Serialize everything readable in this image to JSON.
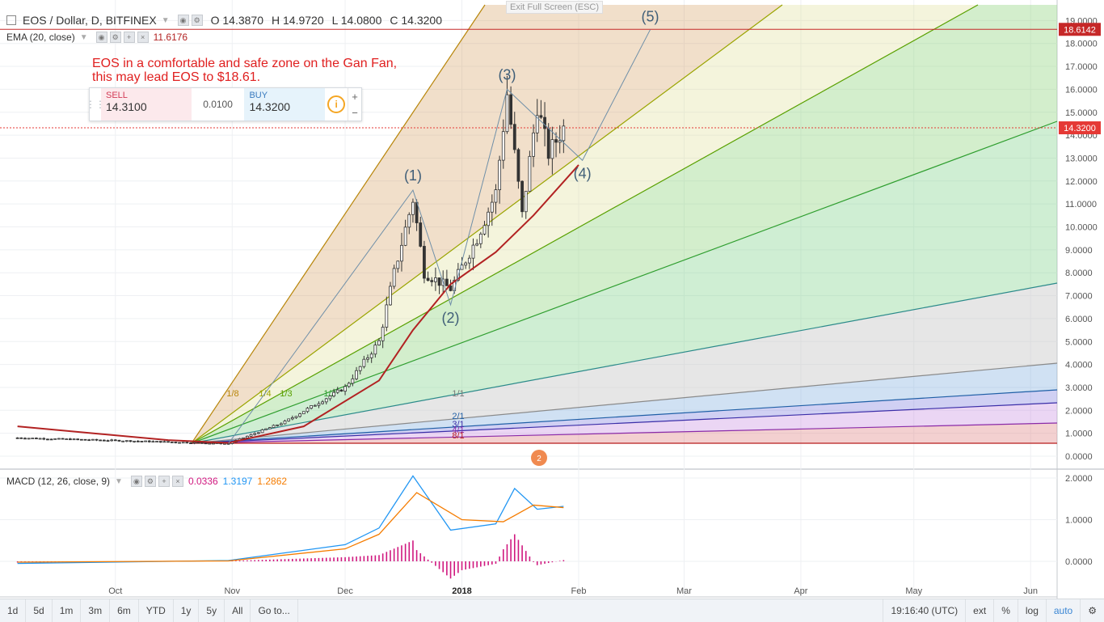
{
  "header": {
    "symbol_title": "EOS / Dollar, D, BITFINEX",
    "open": "O 14.3870",
    "high": "H 14.9720",
    "low": "L 14.0800",
    "close": "C 14.3200",
    "fullscreen_hint": "Exit Full Screen (ESC)"
  },
  "ema_legend": {
    "label": "EMA (20, close)",
    "value": "11.6176",
    "color": "#b22222"
  },
  "annotation": {
    "line1": "EOS in a comfortable and safe zone on the Gan Fan,",
    "line2": "this may lead EOS to $18.61."
  },
  "trade_panel": {
    "sell_label": "SELL",
    "sell_price": "14.3100",
    "spread": "0.0100",
    "buy_label": "BUY",
    "buy_price": "14.3200",
    "info_icon": "i",
    "plus": "+",
    "minus": "−"
  },
  "price_axis": {
    "ticks": [
      "19.0000",
      "18.0000",
      "17.0000",
      "16.0000",
      "15.0000",
      "14.0000",
      "13.0000",
      "12.0000",
      "11.0000",
      "10.0000",
      "9.0000",
      "8.0000",
      "7.0000",
      "6.0000",
      "5.0000",
      "4.0000",
      "3.0000",
      "2.0000",
      "1.0000",
      "0.0000"
    ],
    "target_label": "18.6142",
    "last_label": "14.3200",
    "target_color": "#c62828",
    "last_color": "#e53935"
  },
  "macd_legend": {
    "label": "MACD (12, 26, close, 9)",
    "hist": "0.0336",
    "macd": "1.3197",
    "signal": "1.2862",
    "hist_color": "#d0187f",
    "macd_color": "#2196f3",
    "signal_color": "#f57c00"
  },
  "macd_axis": {
    "ticks": [
      "2.0000",
      "1.0000",
      "0.0000"
    ]
  },
  "time_axis": {
    "labels": [
      "Oct",
      "Nov",
      "Dec",
      "2018",
      "Feb",
      "Mar",
      "Apr",
      "May",
      "Jun"
    ]
  },
  "gann_fan": {
    "labels": [
      "1/8",
      "1/4",
      "1/3",
      "1/2",
      "1/1",
      "2/1",
      "3/1",
      "4/1",
      "8/1"
    ],
    "colors": [
      "#b8860b",
      "#9aa400",
      "#59a000",
      "#2f9e2f",
      "#2b8a8a",
      "#8a8a8a",
      "#1f5fa6",
      "#3b2ea8",
      "#8a2aa8",
      "#b71c1c"
    ]
  },
  "wave_labels": [
    "(1)",
    "(2)",
    "(3)",
    "(4)",
    "(5)"
  ],
  "badge_text": "2",
  "chart_data": {
    "type": "candlestick",
    "title": "EOS / Dollar, D, BITFINEX",
    "y_range": [
      0,
      19
    ],
    "key_levels": {
      "target": 18.6142,
      "last": 14.32
    },
    "wave_points": [
      {
        "label": "(1)",
        "date": "2017-12-19",
        "value": 11.6
      },
      {
        "label": "(2)",
        "date": "2017-12-29",
        "value": 6.6
      },
      {
        "label": "(3)",
        "date": "2018-01-13",
        "value": 16.0
      },
      {
        "label": "(4)",
        "date": "2018-02-02",
        "value": 12.9
      },
      {
        "label": "(5)",
        "date": "2018-02-20",
        "value": 18.6
      }
    ],
    "price_path": [
      {
        "date": "2017-09-05",
        "value": 0.8
      },
      {
        "date": "2017-10-15",
        "value": 0.62
      },
      {
        "date": "2017-10-31",
        "value": 0.55
      },
      {
        "date": "2017-11-15",
        "value": 1.5
      },
      {
        "date": "2017-12-01",
        "value": 3.0
      },
      {
        "date": "2017-12-10",
        "value": 5.0
      },
      {
        "date": "2017-12-14",
        "value": 8.0
      },
      {
        "date": "2017-12-19",
        "value": 11.2
      },
      {
        "date": "2017-12-22",
        "value": 8.0
      },
      {
        "date": "2017-12-29",
        "value": 7.3
      },
      {
        "date": "2018-01-05",
        "value": 9.5
      },
      {
        "date": "2018-01-10",
        "value": 11.5
      },
      {
        "date": "2018-01-13",
        "value": 15.8
      },
      {
        "date": "2018-01-17",
        "value": 10.5
      },
      {
        "date": "2018-01-21",
        "value": 15.3
      },
      {
        "date": "2018-01-24",
        "value": 13.2
      },
      {
        "date": "2018-01-28",
        "value": 14.32
      }
    ],
    "ema_path": [
      {
        "date": "2017-09-05",
        "value": 1.3
      },
      {
        "date": "2017-10-15",
        "value": 0.7
      },
      {
        "date": "2017-10-31",
        "value": 0.58
      },
      {
        "date": "2017-11-20",
        "value": 1.3
      },
      {
        "date": "2017-12-10",
        "value": 3.3
      },
      {
        "date": "2017-12-19",
        "value": 5.5
      },
      {
        "date": "2017-12-29",
        "value": 7.5
      },
      {
        "date": "2018-01-10",
        "value": 8.9
      },
      {
        "date": "2018-01-20",
        "value": 10.5
      },
      {
        "date": "2018-02-01",
        "value": 12.7
      }
    ],
    "macd": {
      "macd_path": [
        {
          "date": "2017-09-05",
          "value": -0.05
        },
        {
          "date": "2017-10-31",
          "value": 0.02
        },
        {
          "date": "2017-12-01",
          "value": 0.4
        },
        {
          "date": "2017-12-10",
          "value": 0.8
        },
        {
          "date": "2017-12-19",
          "value": 2.05
        },
        {
          "date": "2017-12-29",
          "value": 0.75
        },
        {
          "date": "2018-01-10",
          "value": 0.9
        },
        {
          "date": "2018-01-15",
          "value": 1.75
        },
        {
          "date": "2018-01-21",
          "value": 1.25
        },
        {
          "date": "2018-01-28",
          "value": 1.32
        }
      ],
      "signal_path": [
        {
          "date": "2017-09-05",
          "value": -0.02
        },
        {
          "date": "2017-10-31",
          "value": 0.01
        },
        {
          "date": "2017-12-01",
          "value": 0.3
        },
        {
          "date": "2017-12-10",
          "value": 0.65
        },
        {
          "date": "2017-12-20",
          "value": 1.65
        },
        {
          "date": "2018-01-01",
          "value": 1.0
        },
        {
          "date": "2018-01-12",
          "value": 0.95
        },
        {
          "date": "2018-01-20",
          "value": 1.35
        },
        {
          "date": "2018-01-28",
          "value": 1.29
        }
      ]
    }
  }
}
